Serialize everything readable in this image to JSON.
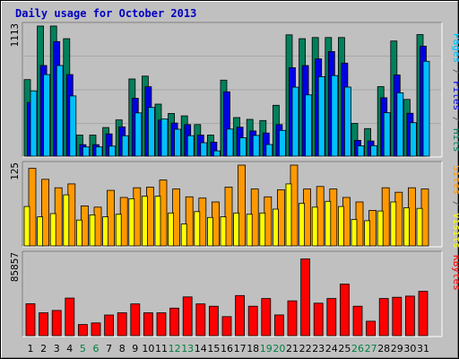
{
  "chart_data": {
    "type": "bar",
    "title": "Daily usage for October 2013",
    "days": [
      "1",
      "2",
      "3",
      "4",
      "5",
      "6",
      "7",
      "8",
      "9",
      "10",
      "11",
      "12",
      "13",
      "14",
      "15",
      "16",
      "17",
      "18",
      "19",
      "20",
      "21",
      "22",
      "23",
      "24",
      "25",
      "26",
      "27",
      "28",
      "29",
      "30",
      "31"
    ],
    "weekend_days": [
      5,
      6,
      12,
      13,
      19,
      20,
      26,
      27
    ],
    "colors": {
      "weekday_label": "#000000",
      "weekend_label": "#008040",
      "hits": "#00805c",
      "files": "#0000e6",
      "pages": "#00c0ff",
      "visits": "#ff9900",
      "sites": "#ffff00",
      "kbytes": "#ff0000",
      "title": "#0000c0"
    },
    "panels": [
      {
        "id": "top",
        "max_label": "1113",
        "ymax": 1113,
        "legend": [
          {
            "text": "Pages",
            "color": "#00c0ff"
          },
          {
            "text": " / ",
            "color": "#606060"
          },
          {
            "text": "Files",
            "color": "#0000e6"
          },
          {
            "text": " / ",
            "color": "#606060"
          },
          {
            "text": "Hits",
            "color": "#00805c"
          }
        ],
        "series": [
          {
            "name": "Hits",
            "color": "#00805c",
            "values": [
              655,
              1113,
              1113,
              1005,
              180,
              180,
              245,
              310,
              660,
              685,
              445,
              365,
              345,
              270,
              180,
              650,
              330,
              315,
              305,
              435,
              1038,
              1005,
              1015,
              1015,
              1015,
              280,
              236,
              595,
              985,
              485,
              1040
            ]
          },
          {
            "name": "Files",
            "color": "#0000e6",
            "values": [
              460,
              775,
              980,
              698,
              98,
              98,
              190,
              250,
              495,
              594,
              309,
              283,
              270,
              180,
              120,
              550,
              248,
              216,
              198,
              270,
              757,
              775,
              832,
              895,
              796,
              135,
              130,
              500,
              695,
              367,
              941
            ]
          },
          {
            "name": "Pages",
            "color": "#00c0ff",
            "values": [
              558,
              698,
              775,
              515,
              79,
              79,
              86,
              175,
              370,
              417,
              318,
              230,
              175,
              115,
              45,
              232,
              157,
              177,
              100,
              220,
              590,
              524,
              680,
              689,
              591,
              88,
              90,
              372,
              542,
              286,
              811
            ]
          }
        ]
      },
      {
        "id": "middle",
        "max_label": "125",
        "ymax": 125,
        "legend": [
          {
            "text": "Sites",
            "color": "#ff9900"
          },
          {
            "text": " / ",
            "color": "#606060"
          },
          {
            "text": "Visits",
            "color": "#ffff00"
          }
        ],
        "series": [
          {
            "name": "Visits",
            "color": "#ff9900",
            "values": [
              120,
              103,
              90,
              96,
              62,
              60,
              86,
              75,
              90,
              91,
              102,
              88,
              76,
              74,
              68,
              91,
              125,
              88,
              76,
              87,
              125,
              88,
              92,
              88,
              75,
              68,
              55,
              90,
              83,
              90,
              88
            ]
          },
          {
            "name": "Sites",
            "color": "#ffff00",
            "values": [
              61,
              45,
              50,
              79,
              40,
              48,
              45,
              49,
              73,
              77,
              77,
              51,
              34,
              53,
              44,
              45,
              51,
              49,
              51,
              57,
              96,
              66,
              60,
              69,
              61,
              41,
              39,
              54,
              68,
              59,
              58
            ]
          }
        ]
      },
      {
        "id": "bottom",
        "max_label": "85857",
        "ymax": 85857,
        "legend": [
          {
            "text": "KBytes",
            "color": "#ff0000"
          }
        ],
        "series": [
          {
            "name": "KBytes",
            "color": "#ff0000",
            "values": [
              34000,
              24300,
              26800,
              40000,
              11800,
              13500,
              21900,
              24300,
              33800,
              24300,
              24300,
              29300,
              41200,
              33800,
              31300,
              20200,
              42600,
              31300,
              39500,
              22000,
              37000,
              81600,
              34500,
              39500,
              54900,
              31300,
              15400,
              39500,
              40800,
              42100,
              47100
            ]
          }
        ]
      }
    ]
  }
}
